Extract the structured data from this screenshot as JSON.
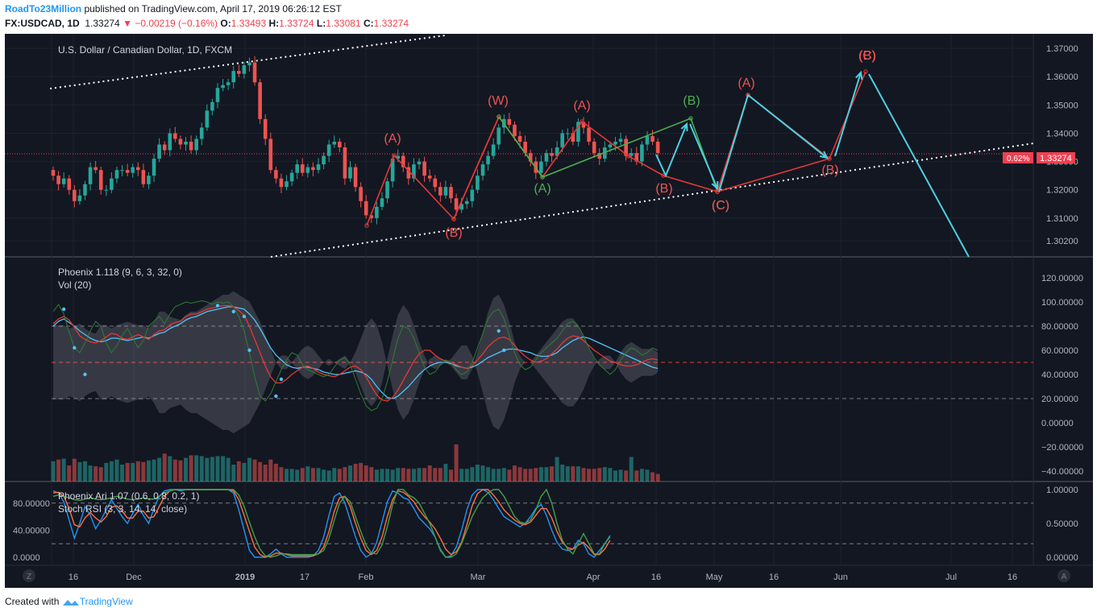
{
  "header": {
    "author": "RoadTo23Million",
    "published": "published on TradingView.com, April 17, 2019 06:26:12 EST",
    "symbol": "FX:USDCAD, 1D",
    "last": "1.33274",
    "change": "−0.00219 (−0.16%)",
    "open_label": "O:",
    "open": "1.33493",
    "high_label": "H:",
    "high": "1.33724",
    "low_label": "L:",
    "low": "1.33081",
    "close_label": "C:",
    "close": "1.33274"
  },
  "footer": {
    "created_with": "Created with",
    "brand": "TradingView"
  },
  "chart_data": [
    {
      "type": "candlestick",
      "title": "U.S. Dollar / Canadian Dollar, 1D, FXCM",
      "ylim": [
        1.3,
        1.37
      ],
      "y_ticks": [
        "1.37000",
        "1.36000",
        "1.35000",
        "1.34000",
        "1.33000",
        "1.32000",
        "1.31000",
        "1.30200"
      ],
      "last_price_label": "1.33274",
      "pct_badge": "0.62%",
      "x_ticks": [
        "16",
        "Dec",
        "2019",
        "17",
        "Feb",
        "Mar",
        "Apr",
        "16",
        "May",
        "16",
        "Jun",
        "Jul",
        "16"
      ],
      "close_series": [
        1.325,
        1.322,
        1.324,
        1.32,
        1.316,
        1.318,
        1.322,
        1.328,
        1.327,
        1.32,
        1.32,
        1.324,
        1.327,
        1.327,
        1.326,
        1.328,
        1.327,
        1.322,
        1.325,
        1.331,
        1.336,
        1.334,
        1.34,
        1.338,
        1.336,
        1.337,
        1.334,
        1.338,
        1.342,
        1.348,
        1.351,
        1.356,
        1.357,
        1.358,
        1.362,
        1.361,
        1.364,
        1.365,
        1.358,
        1.345,
        1.338,
        1.327,
        1.324,
        1.321,
        1.323,
        1.326,
        1.329,
        1.326,
        1.328,
        1.327,
        1.329,
        1.332,
        1.336,
        1.337,
        1.335,
        1.324,
        1.328,
        1.321,
        1.316,
        1.311,
        1.31,
        1.314,
        1.317,
        1.323,
        1.331,
        1.332,
        1.328,
        1.324,
        1.329,
        1.33,
        1.325,
        1.324,
        1.321,
        1.318,
        1.321,
        1.317,
        1.313,
        1.315,
        1.316,
        1.32,
        1.325,
        1.329,
        1.332,
        1.336,
        1.342,
        1.345,
        1.343,
        1.339,
        1.337,
        1.333,
        1.33,
        1.326,
        1.33,
        1.333,
        1.332,
        1.335,
        1.34,
        1.34,
        1.337,
        1.344,
        1.342,
        1.337,
        1.333,
        1.331,
        1.335,
        1.336,
        1.337,
        1.338,
        1.332,
        1.333,
        1.33,
        1.336,
        1.339,
        1.337,
        1.333
      ],
      "annotations": [
        "(A)",
        "(B)",
        "(W)",
        "(A)",
        "(B)",
        "(A)",
        "(B)",
        "(C)",
        "(A)",
        "(B)",
        "(C)",
        "(C)",
        "(B)"
      ]
    },
    {
      "type": "line",
      "title": "Phoenix 1.118 (9, 6, 3, 32, 0)",
      "subtitle": "Vol (20)",
      "ylim": [
        -48,
        125
      ],
      "y_ticks": [
        "120.00000",
        "100.00000",
        "80.00000",
        "60.00000",
        "40.00000",
        "20.00000",
        "0.00000",
        "−20.00000",
        "−40.00000"
      ],
      "series": [
        {
          "color": "#4fc3f7",
          "values": [
            80,
            84,
            86,
            83,
            80,
            76,
            73,
            70,
            68,
            67,
            68,
            70,
            70,
            69,
            68,
            69,
            70,
            71,
            70,
            72,
            74,
            75,
            78,
            80,
            82,
            85,
            87,
            88,
            90,
            92,
            93,
            94,
            95,
            96,
            96,
            95,
            94,
            90,
            85,
            78,
            70,
            62,
            56,
            52,
            48,
            46,
            45,
            46,
            46,
            45,
            44,
            42,
            41,
            40,
            40,
            41,
            42,
            43,
            42,
            40,
            36,
            30,
            25,
            21,
            20,
            22,
            26,
            30,
            35,
            40,
            44,
            47,
            49,
            50,
            50,
            49,
            47,
            46,
            45,
            46,
            48,
            51,
            54,
            56,
            58,
            60,
            61,
            61,
            60,
            59,
            58,
            56,
            55,
            55,
            56,
            58,
            62,
            65,
            68,
            70,
            71,
            70,
            68,
            66,
            64,
            62,
            60,
            58,
            56,
            54,
            52,
            50,
            48,
            46,
            45
          ]
        },
        {
          "color": "#e53935",
          "values": [
            82,
            86,
            88,
            85,
            79,
            72,
            69,
            67,
            66,
            68,
            71,
            74,
            73,
            70,
            69,
            71,
            73,
            71,
            69,
            73,
            76,
            77,
            81,
            83,
            84,
            88,
            90,
            90,
            92,
            94,
            95,
            96,
            97,
            97,
            96,
            93,
            89,
            80,
            69,
            58,
            47,
            38,
            33,
            33,
            36,
            40,
            43,
            46,
            47,
            45,
            42,
            40,
            39,
            38,
            40,
            43,
            46,
            47,
            44,
            38,
            30,
            23,
            19,
            18,
            21,
            27,
            35,
            43,
            51,
            57,
            60,
            60,
            56,
            53,
            51,
            50,
            48,
            46,
            45,
            47,
            52,
            57,
            63,
            67,
            70,
            71,
            69,
            64,
            59,
            55,
            52,
            50,
            51,
            53,
            57,
            61,
            66,
            70,
            72,
            71,
            68,
            64,
            60,
            57,
            54,
            51,
            50,
            48,
            47,
            47,
            48,
            50,
            52,
            53,
            52
          ]
        },
        {
          "color": "#2e7d32",
          "values": [
            92,
            98,
            90,
            75,
            62,
            58,
            66,
            76,
            84,
            80,
            66,
            58,
            64,
            72,
            78,
            70,
            62,
            68,
            80,
            84,
            88,
            82,
            90,
            96,
            98,
            100,
            99,
            100,
            101,
            100,
            98,
            100,
            99,
            100,
            96,
            88,
            76,
            58,
            38,
            22,
            18,
            24,
            34,
            44,
            52,
            58,
            56,
            48,
            44,
            42,
            40,
            38,
            40,
            46,
            52,
            54,
            48,
            36,
            24,
            14,
            10,
            12,
            20,
            34,
            52,
            70,
            80,
            78,
            70,
            58,
            46,
            40,
            42,
            48,
            52,
            50,
            44,
            40,
            42,
            50,
            62,
            74,
            86,
            92,
            94,
            86,
            72,
            58,
            48,
            44,
            46,
            52,
            58,
            62,
            66,
            70,
            76,
            82,
            84,
            80,
            72,
            62,
            54,
            48,
            44,
            40,
            44,
            52,
            58,
            62,
            60,
            56,
            58,
            62,
            60
          ]
        },
        {
          "color": "rgba(200,200,210,0.35)",
          "values": [
            72,
            72,
            72,
            70,
            71,
            73,
            70,
            68,
            67,
            72,
            72,
            70,
            72,
            73,
            74,
            73,
            72,
            72,
            70,
            74,
            80,
            80,
            77,
            76,
            75,
            78,
            80,
            80,
            82,
            84,
            86,
            88,
            90,
            90,
            92,
            90,
            88,
            86,
            80,
            74,
            66,
            58,
            50,
            46,
            46,
            50,
            54,
            58,
            60,
            58,
            54,
            50,
            48,
            50,
            52,
            54,
            50,
            44,
            36,
            28,
            24,
            28,
            38,
            52,
            66,
            78,
            84,
            80,
            72,
            62,
            54,
            48,
            46,
            48,
            50,
            48,
            44,
            40,
            40,
            46,
            56,
            68,
            80,
            88,
            90,
            84,
            74,
            62,
            54,
            50,
            50,
            54,
            58,
            62,
            66,
            70,
            74,
            76,
            76,
            72,
            66,
            58,
            52,
            48,
            46,
            46,
            50,
            56,
            60,
            62,
            60,
            58,
            58,
            58,
            56
          ]
        }
      ],
      "volume": [
        24,
        26,
        27,
        19,
        27,
        23,
        24,
        19,
        18,
        17,
        22,
        24,
        26,
        20,
        22,
        22,
        24,
        23,
        25,
        26,
        28,
        33,
        30,
        26,
        25,
        28,
        31,
        31,
        30,
        28,
        29,
        30,
        30,
        28,
        20,
        24,
        22,
        28,
        26,
        23,
        20,
        26,
        21,
        17,
        15,
        15,
        14,
        16,
        18,
        16,
        16,
        14,
        13,
        16,
        15,
        17,
        19,
        21,
        22,
        19,
        17,
        14,
        15,
        15,
        14,
        16,
        16,
        15,
        15,
        16,
        16,
        19,
        16,
        16,
        21,
        14,
        44,
        15,
        15,
        17,
        20,
        19,
        17,
        15,
        15,
        16,
        14,
        19,
        17,
        15,
        15,
        16,
        17,
        17,
        18,
        29,
        20,
        18,
        18,
        18,
        16,
        15,
        15,
        16,
        17,
        16,
        13,
        14,
        13,
        29,
        13,
        15,
        14,
        11,
        9
      ],
      "dots": [
        94,
        62,
        40,
        97,
        92,
        88,
        60,
        22,
        36,
        76,
        60
      ]
    },
    {
      "type": "line",
      "title": "Phoenix Ari 1.07 (0.6, 0.8, 0.2, 1)",
      "subtitle": "Stoch RSI (3, 3, 14, 14, close)",
      "left_ticks": [
        "80.00000",
        "40.00000",
        "0.0000"
      ],
      "right_ticks": [
        "1.00000",
        "0.50000",
        "0.00000"
      ],
      "ylim": [
        -0.05,
        1.05
      ],
      "series": [
        {
          "color": "#2196f3",
          "values": [
            0.98,
            0.95,
            0.82,
            0.55,
            0.28,
            0.5,
            0.75,
            0.62,
            0.42,
            0.55,
            0.7,
            0.85,
            0.72,
            0.6,
            0.5,
            0.65,
            0.78,
            0.62,
            0.5,
            0.72,
            0.9,
            0.98,
            1,
            1,
            0.98,
            1,
            1,
            1,
            1,
            1,
            1,
            1,
            1,
            1,
            0.95,
            0.7,
            0.4,
            0.1,
            0,
            0,
            0,
            0.05,
            0.12,
            0.05,
            0,
            0,
            0,
            0,
            0,
            0.02,
            0.1,
            0.3,
            0.62,
            0.9,
            0.95,
            0.8,
            0.55,
            0.3,
            0.1,
            0,
            0.05,
            0.22,
            0.52,
            0.82,
            0.98,
            0.95,
            0.88,
            0.85,
            0.72,
            0.58,
            0.5,
            0.42,
            0.3,
            0.12,
            0,
            0.02,
            0.15,
            0.4,
            0.7,
            0.92,
            1,
            1,
            0.96,
            0.85,
            0.72,
            0.6,
            0.55,
            0.5,
            0.45,
            0.5,
            0.6,
            0.72,
            0.78,
            0.62,
            0.4,
            0.22,
            0.12,
            0.1,
            0.12,
            0.25,
            0.2,
            0.05,
            0,
            0.1,
            0.2,
            0.32
          ]
        },
        {
          "color": "#ff7043",
          "values": [
            0.95,
            0.96,
            0.9,
            0.72,
            0.48,
            0.45,
            0.58,
            0.66,
            0.58,
            0.52,
            0.6,
            0.74,
            0.76,
            0.68,
            0.58,
            0.58,
            0.68,
            0.68,
            0.58,
            0.6,
            0.75,
            0.9,
            0.98,
            1,
            1,
            1,
            1,
            1,
            1,
            1,
            1,
            1,
            1,
            1,
            0.98,
            0.85,
            0.62,
            0.38,
            0.15,
            0.04,
            0,
            0.02,
            0.06,
            0.06,
            0.04,
            0.02,
            0.02,
            0.02,
            0.02,
            0.02,
            0.05,
            0.15,
            0.38,
            0.68,
            0.88,
            0.9,
            0.75,
            0.5,
            0.28,
            0.1,
            0.04,
            0.1,
            0.3,
            0.6,
            0.85,
            0.98,
            0.96,
            0.9,
            0.82,
            0.7,
            0.6,
            0.52,
            0.42,
            0.28,
            0.12,
            0.04,
            0.08,
            0.22,
            0.48,
            0.76,
            0.94,
            1,
            1,
            0.92,
            0.82,
            0.7,
            0.62,
            0.55,
            0.5,
            0.48,
            0.52,
            0.62,
            0.72,
            0.72,
            0.58,
            0.38,
            0.22,
            0.14,
            0.12,
            0.18,
            0.22,
            0.14,
            0.04,
            0.04,
            0.12,
            0.25
          ]
        },
        {
          "color": "#43a047",
          "values": [
            0.9,
            0.92,
            0.9,
            0.88,
            0.85,
            0.84,
            0.86,
            0.88,
            0.86,
            0.85,
            0.86,
            0.88,
            0.9,
            0.88,
            0.86,
            0.85,
            0.86,
            0.88,
            0.86,
            0.86,
            0.9,
            0.95,
            0.98,
            1,
            1,
            1,
            1,
            1,
            1,
            1,
            1,
            1,
            1,
            1,
            1,
            0.92,
            0.75,
            0.52,
            0.3,
            0.12,
            0.02,
            0,
            0.02,
            0.05,
            0.05,
            0.04,
            0.04,
            0.04,
            0.04,
            0.04,
            0.05,
            0.1,
            0.28,
            0.55,
            0.8,
            0.9,
            0.82,
            0.6,
            0.38,
            0.18,
            0.06,
            0.05,
            0.18,
            0.45,
            0.78,
            1,
            1,
            0.92,
            0.88,
            0.8,
            0.65,
            0.5,
            0.3,
            0.1,
            0,
            0,
            0.05,
            0.2,
            0.4,
            0.6,
            0.75,
            0.88,
            0.95,
            1,
            1,
            0.9,
            0.75,
            0.6,
            0.52,
            0.5,
            0.55,
            0.7,
            0.9,
            1,
            0.8,
            0.5,
            0.25,
            0.12,
            0.05,
            0.2,
            0.35,
            0.2,
            0.05,
            0.05,
            0.2,
            0.3
          ]
        }
      ]
    }
  ]
}
